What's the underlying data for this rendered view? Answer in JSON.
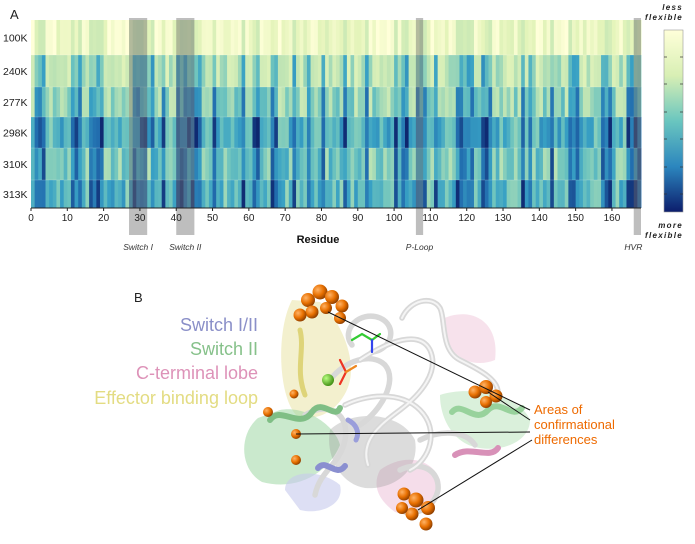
{
  "panel_a": {
    "label": "A"
  },
  "panel_b": {
    "label": "B"
  },
  "chart_data": {
    "type": "heatmap",
    "title": "",
    "xlabel": "Residue",
    "ylabel": "",
    "x_range": [
      0,
      168
    ],
    "x_ticks": [
      0,
      10,
      20,
      30,
      40,
      50,
      60,
      70,
      80,
      90,
      100,
      110,
      120,
      130,
      140,
      150,
      160
    ],
    "rows": [
      "100K",
      "240K",
      "277K",
      "298K",
      "310K",
      "313K"
    ],
    "colorbar": {
      "top_label": "less flexible",
      "bottom_label": "more flexible",
      "scale": "0 = less flexible, 1 = more flexible"
    },
    "highlighted_regions": [
      {
        "label": "Switch I",
        "start": 27,
        "end": 32
      },
      {
        "label": "Switch II",
        "start": 40,
        "end": 45
      },
      {
        "label": "P-Loop",
        "start": 106,
        "end": 108
      },
      {
        "label": "HVR",
        "start": 166,
        "end": 168
      }
    ],
    "row_flexibility_mean": [
      0.12,
      0.36,
      0.46,
      0.62,
      0.54,
      0.6
    ],
    "notable_flexible_residues": [
      1,
      2,
      3,
      11,
      12,
      13,
      16,
      17,
      18,
      19,
      28,
      29,
      30,
      31,
      33,
      36,
      40,
      41,
      42,
      43,
      44,
      45,
      46,
      50,
      58,
      61,
      62,
      66,
      67,
      72,
      76,
      80,
      86,
      92,
      100,
      102,
      103,
      106,
      107,
      108,
      111,
      117,
      118,
      119,
      120,
      121,
      124,
      125,
      126,
      135,
      137,
      143,
      148,
      149,
      150,
      157,
      158,
      159,
      164,
      165,
      166,
      167
    ]
  },
  "legend": {
    "items": [
      {
        "label": "Switch I/II",
        "color": "#8a8fc8"
      },
      {
        "label": "Switch II",
        "color": "#86c18a"
      },
      {
        "label": "C-terminal lobe",
        "color": "#dd92b8"
      },
      {
        "label": "Effector binding loop",
        "color": "#e3dc82"
      }
    ]
  },
  "callout": {
    "lines": [
      "Areas of",
      "confirmational",
      "differences"
    ],
    "color": "#ee6a00"
  }
}
